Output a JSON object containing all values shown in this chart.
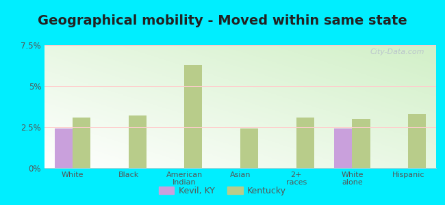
{
  "title": "Geographical mobility - Moved within same state",
  "categories": [
    "White",
    "Black",
    "American\nIndian",
    "Asian",
    "2+\nraces",
    "White\nalone",
    "Hispanic"
  ],
  "kevil_values": [
    2.4,
    0,
    0,
    0,
    0,
    2.4,
    0
  ],
  "kentucky_values": [
    3.1,
    3.2,
    6.3,
    2.4,
    3.1,
    3.0,
    3.3
  ],
  "kevil_color": "#c9a0dc",
  "kentucky_color": "#b8cc8a",
  "background_color": "#00eeff",
  "ylim": [
    0,
    7.5
  ],
  "yticks": [
    0,
    2.5,
    5.0,
    7.5
  ],
  "ytick_labels": [
    "0%",
    "2.5%",
    "5%",
    "7.5%"
  ],
  "bar_width": 0.32,
  "title_fontsize": 14,
  "legend_labels": [
    "Kevil, KY",
    "Kentucky"
  ],
  "watermark": "City-Data.com"
}
